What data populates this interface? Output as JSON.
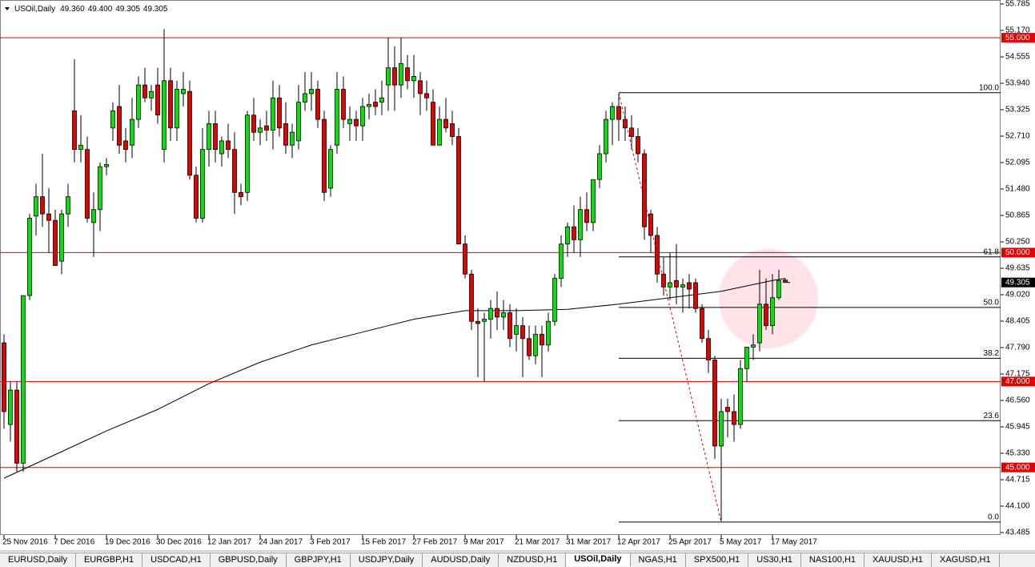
{
  "chart_data": {
    "type": "candlestick",
    "symbol": "USOil,Daily",
    "header_ohlc": [
      "49.360",
      "49.400",
      "49.305",
      "49.305"
    ],
    "categories": [
      "25 Nov 2016",
      null,
      null,
      null,
      null,
      null,
      null,
      null,
      "7 Dec 2016",
      null,
      null,
      null,
      null,
      null,
      null,
      null,
      "19 Dec 2016",
      null,
      null,
      null,
      null,
      null,
      null,
      null,
      "30 Dec 2016",
      null,
      null,
      null,
      null,
      null,
      null,
      null,
      "12 Jan 2017",
      null,
      null,
      null,
      null,
      null,
      null,
      null,
      "24 Jan 2017",
      null,
      null,
      null,
      null,
      null,
      null,
      null,
      "3 Feb 2017",
      null,
      null,
      null,
      null,
      null,
      null,
      null,
      "15 Feb 2017",
      null,
      null,
      null,
      null,
      null,
      null,
      null,
      "27 Feb 2017",
      null,
      null,
      null,
      null,
      null,
      null,
      null,
      "9 Mar 2017",
      null,
      null,
      null,
      null,
      null,
      null,
      null,
      "21 Mar 2017",
      null,
      null,
      null,
      null,
      null,
      null,
      null,
      "31 Mar 2017",
      null,
      null,
      null,
      null,
      null,
      null,
      null,
      "12 Apr 2017",
      null,
      null,
      null,
      null,
      null,
      null,
      null,
      "25 Apr 2017",
      null,
      null,
      null,
      null,
      null,
      null,
      null,
      "5 May 2017",
      null,
      null,
      null,
      null,
      null,
      null,
      null,
      "17 May 2017",
      null,
      null
    ],
    "candles": {
      "open": [
        47.9,
        46.0,
        46.8,
        45.1,
        49.0,
        50.85,
        51.3,
        50.9,
        50.75,
        49.8,
        50.9,
        53.3,
        52.4,
        52.4,
        50.7,
        51.0,
        52.0,
        52.9,
        53.4,
        52.6,
        52.5,
        53.1,
        53.9,
        53.6,
        53.9,
        52.4,
        54.0,
        52.9,
        53.7,
        53.75,
        51.8,
        50.8,
        52.4,
        53.0,
        52.3,
        52.6,
        52.4,
        51.4,
        51.4,
        53.2,
        52.8,
        52.95,
        52.85,
        53.6,
        53.0,
        52.5,
        52.6,
        53.5,
        53.7,
        53.8,
        53.1,
        51.5,
        52.5,
        53.8,
        53.0,
        53.1,
        52.95,
        53.4,
        53.5,
        53.5,
        53.9,
        54.3,
        53.9,
        54.3,
        54.0,
        54.0,
        53.7,
        53.5,
        52.5,
        53.1,
        53.0,
        52.7,
        50.2,
        49.5,
        48.4,
        48.4,
        48.45,
        48.7,
        48.5,
        48.6,
        48.1,
        48.3,
        48.0,
        47.6,
        48.1,
        47.85,
        48.4,
        49.4,
        50.2,
        50.6,
        50.3,
        51.0,
        50.7,
        51.7,
        52.3,
        53.1,
        53.4,
        53.1,
        52.9,
        52.7,
        52.3,
        50.9,
        50.4,
        49.5,
        49.2,
        49.35,
        49.2,
        49.3,
        49.3,
        48.7,
        48.0,
        47.5,
        45.5,
        46.4,
        46.3,
        46.0,
        47.3,
        47.8,
        47.9,
        48.8,
        48.3,
        48.95,
        49.36
      ],
      "high": [
        48.1,
        47.0,
        47.0,
        49.0,
        50.9,
        51.6,
        52.3,
        51.5,
        51.0,
        51.0,
        51.6,
        54.5,
        53.2,
        52.7,
        51.4,
        52.1,
        52.2,
        53.5,
        53.9,
        52.9,
        53.6,
        54.1,
        54.3,
        53.9,
        54.3,
        55.2,
        54.3,
        54.0,
        54.2,
        54.0,
        52.0,
        52.9,
        53.3,
        53.3,
        52.7,
        53.0,
        52.8,
        51.6,
        53.3,
        53.6,
        53.1,
        53.3,
        54.0,
        53.9,
        53.5,
        53.0,
        53.9,
        54.2,
        54.2,
        54.0,
        53.3,
        52.5,
        54.2,
        54.1,
        53.4,
        53.3,
        53.6,
        53.7,
        53.8,
        54.0,
        55.0,
        54.8,
        55.0,
        54.6,
        54.6,
        54.2,
        54.0,
        53.8,
        53.4,
        53.6,
        53.3,
        52.9,
        50.4,
        49.6,
        48.7,
        48.6,
        48.9,
        49.1,
        48.9,
        48.8,
        48.7,
        48.5,
        48.3,
        48.3,
        48.3,
        48.6,
        49.5,
        50.4,
        50.7,
        51.1,
        51.3,
        51.4,
        51.7,
        52.5,
        53.3,
        53.5,
        53.7,
        53.4,
        53.2,
        52.9,
        52.4,
        51.0,
        50.6,
        49.9,
        50.0,
        50.2,
        49.4,
        49.5,
        49.4,
        48.8,
        48.2,
        47.6,
        46.6,
        46.6,
        46.7,
        47.5,
        47.8,
        48.1,
        49.6,
        49.4,
        49.5,
        49.6,
        49.4
      ],
      "low": [
        45.9,
        45.6,
        44.9,
        44.9,
        48.9,
        50.4,
        50.6,
        50.0,
        49.7,
        49.5,
        50.6,
        52.1,
        52.1,
        50.7,
        49.9,
        50.5,
        51.8,
        52.6,
        52.3,
        52.1,
        52.2,
        52.9,
        53.5,
        53.3,
        53.0,
        52.1,
        52.6,
        52.6,
        53.4,
        51.7,
        50.7,
        50.7,
        52.0,
        52.1,
        52.0,
        52.2,
        50.9,
        51.1,
        51.2,
        52.6,
        52.5,
        52.6,
        52.4,
        52.7,
        52.3,
        52.2,
        52.4,
        53.3,
        53.3,
        52.9,
        51.2,
        51.3,
        52.3,
        52.9,
        52.6,
        52.6,
        52.6,
        53.1,
        53.2,
        53.2,
        53.3,
        53.3,
        53.6,
        53.8,
        53.6,
        53.2,
        53.3,
        52.5,
        52.5,
        52.8,
        52.5,
        50.2,
        49.4,
        48.2,
        47.1,
        47.0,
        48.0,
        48.2,
        48.2,
        47.8,
        47.7,
        47.1,
        47.5,
        47.4,
        47.1,
        47.7,
        48.3,
        49.2,
        49.9,
        50.0,
        49.9,
        50.5,
        50.5,
        51.5,
        52.1,
        52.5,
        52.6,
        52.6,
        52.4,
        52.1,
        50.3,
        50.0,
        49.3,
        49.0,
        48.9,
        48.8,
        48.6,
        48.7,
        48.6,
        47.9,
        47.2,
        45.2,
        43.75,
        45.7,
        45.6,
        45.9,
        47.0,
        47.5,
        47.7,
        48.2,
        48.1,
        48.9,
        49.305
      ],
      "close": [
        46.3,
        46.8,
        45.1,
        49.0,
        50.8,
        51.3,
        50.9,
        50.75,
        49.7,
        50.9,
        51.3,
        52.4,
        52.5,
        50.8,
        51.0,
        52.0,
        52.05,
        53.3,
        52.5,
        52.4,
        53.1,
        53.9,
        53.6,
        53.75,
        53.2,
        54.0,
        52.9,
        53.8,
        53.8,
        51.8,
        50.8,
        52.4,
        53.0,
        52.4,
        52.6,
        52.4,
        51.4,
        51.3,
        53.2,
        52.8,
        52.9,
        52.85,
        53.6,
        52.9,
        52.5,
        52.8,
        53.5,
        53.7,
        53.8,
        53.1,
        51.4,
        52.4,
        53.8,
        53.1,
        53.1,
        52.95,
        53.4,
        53.45,
        53.4,
        53.6,
        54.3,
        53.9,
        54.4,
        54.0,
        54.1,
        53.7,
        53.6,
        52.5,
        53.1,
        52.9,
        52.7,
        50.2,
        49.5,
        48.4,
        48.35,
        48.45,
        48.7,
        48.5,
        48.6,
        48.0,
        48.3,
        48.0,
        47.6,
        48.1,
        47.85,
        48.4,
        49.4,
        50.2,
        50.6,
        50.3,
        51.0,
        50.7,
        51.7,
        52.3,
        53.1,
        53.4,
        53.1,
        52.9,
        52.7,
        52.3,
        50.6,
        50.4,
        49.5,
        49.2,
        49.3,
        49.2,
        49.25,
        49.15,
        48.7,
        48.0,
        47.5,
        45.5,
        46.3,
        46.3,
        46.0,
        47.3,
        47.8,
        47.85,
        48.8,
        48.3,
        48.95,
        49.35,
        49.305
      ]
    },
    "up_color": "#00e600",
    "down_color": "#e60000",
    "moving_average": {
      "x": [
        0,
        8,
        16,
        24,
        32,
        40,
        48,
        56,
        64,
        72,
        80,
        88,
        96,
        104,
        112,
        120,
        122
      ],
      "values": [
        44.75,
        45.3,
        45.85,
        46.35,
        46.95,
        47.45,
        47.85,
        48.15,
        48.45,
        48.65,
        48.65,
        48.68,
        48.8,
        48.95,
        49.1,
        49.35,
        49.4
      ],
      "color": "#000000"
    },
    "hlines": [
      {
        "value": 55,
        "label": "55.000"
      },
      {
        "value": 50,
        "label": "50.000"
      },
      {
        "value": 47,
        "label": "47.000"
      },
      {
        "value": 45,
        "label": "45.000"
      }
    ],
    "hline_color": "#e00000",
    "fibonacci": {
      "start": 96,
      "end": 112,
      "levels": [
        {
          "label": "100.0",
          "price": 53.72
        },
        {
          "label": "61.8",
          "price": 49.9
        },
        {
          "label": "50.0",
          "price": 48.725
        },
        {
          "label": "38.2",
          "price": 47.54
        },
        {
          "label": "23.6",
          "price": 46.09
        },
        {
          "label": "0.0",
          "price": 43.73
        }
      ]
    },
    "ylim": [
      43.485,
      55.785
    ],
    "yticks": [
      55.785,
      {
        "value": 55.17,
        "label": "55.170"
      },
      54.555,
      {
        "value": 53.94,
        "label": "53.940"
      },
      53.325,
      {
        "value": 52.71,
        "label": "52.710"
      },
      52.095,
      {
        "value": 51.48,
        "label": "51.480"
      },
      50.865,
      {
        "value": 50.25,
        "label": "50.250"
      },
      49.635,
      {
        "value": 49.02,
        "label": "49.020"
      },
      48.405,
      {
        "value": 47.79,
        "label": "47.790"
      },
      47.175,
      {
        "value": 46.56,
        "label": "46.560"
      },
      45.945,
      {
        "value": 45.33,
        "label": "45.330"
      },
      44.715,
      {
        "value": 44.1,
        "label": "44.100"
      },
      43.485
    ]
  },
  "tabs": [
    "EURUSD,Daily",
    "EURGBP,H1",
    "USDCAD,H1",
    "GBPUSD,Daily",
    "GBPJPY,H1",
    "USDJPY,Daily",
    "AUDUSD,Daily",
    "NZDUSD,H1",
    "USOil,Daily",
    "NGAS,H1",
    "SPX500,H1",
    "US30,H1",
    "NAS100,H1",
    "XAUUSD,H1",
    "XAGUSD,H1"
  ],
  "active_tab": 8
}
